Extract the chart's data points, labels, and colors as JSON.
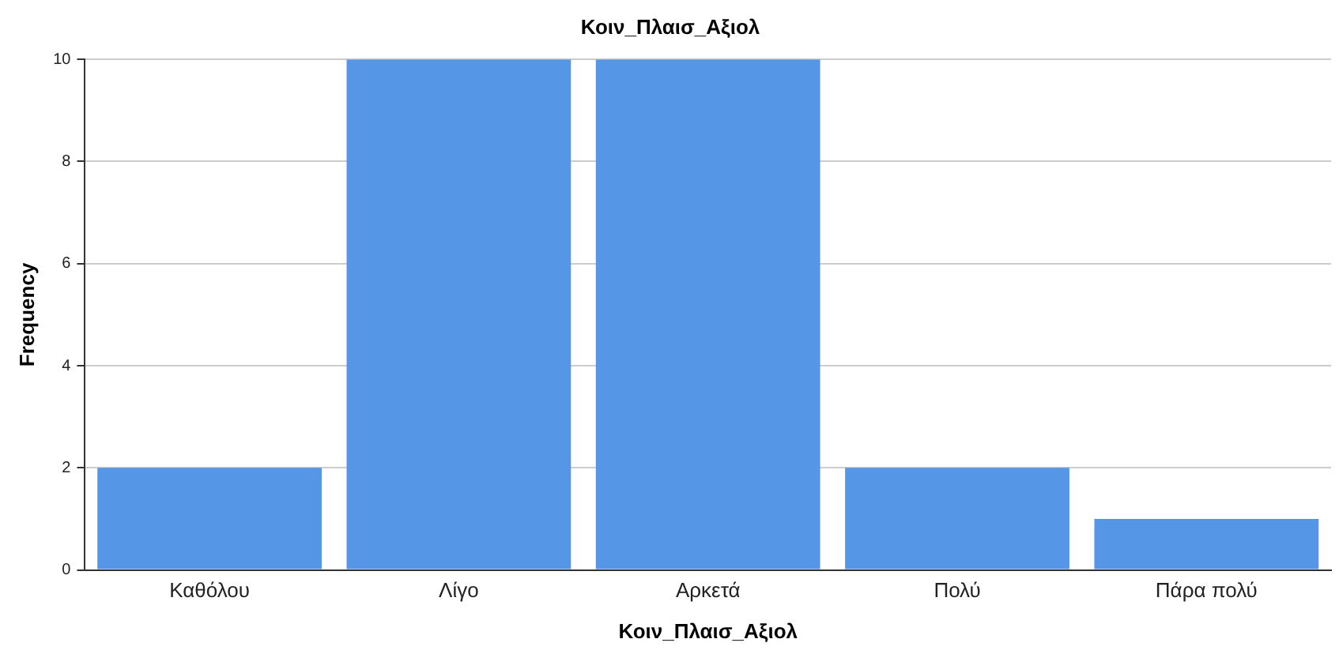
{
  "chart_data": {
    "type": "bar",
    "title": "Κοιν_Πλαισ_Αξιολ",
    "xlabel": "Κοιν_Πλαισ_Αξιολ",
    "ylabel": "Frequency",
    "categories": [
      "Καθόλου",
      "Λίγο",
      "Αρκετά",
      "Πολύ",
      "Πάρα πολύ"
    ],
    "values": [
      2,
      10,
      10,
      2,
      1
    ],
    "color": "#5596e6",
    "ylim": [
      0,
      10
    ],
    "yticks": [
      0,
      2,
      4,
      6,
      8,
      10
    ],
    "grid": "y",
    "legend": false
  }
}
